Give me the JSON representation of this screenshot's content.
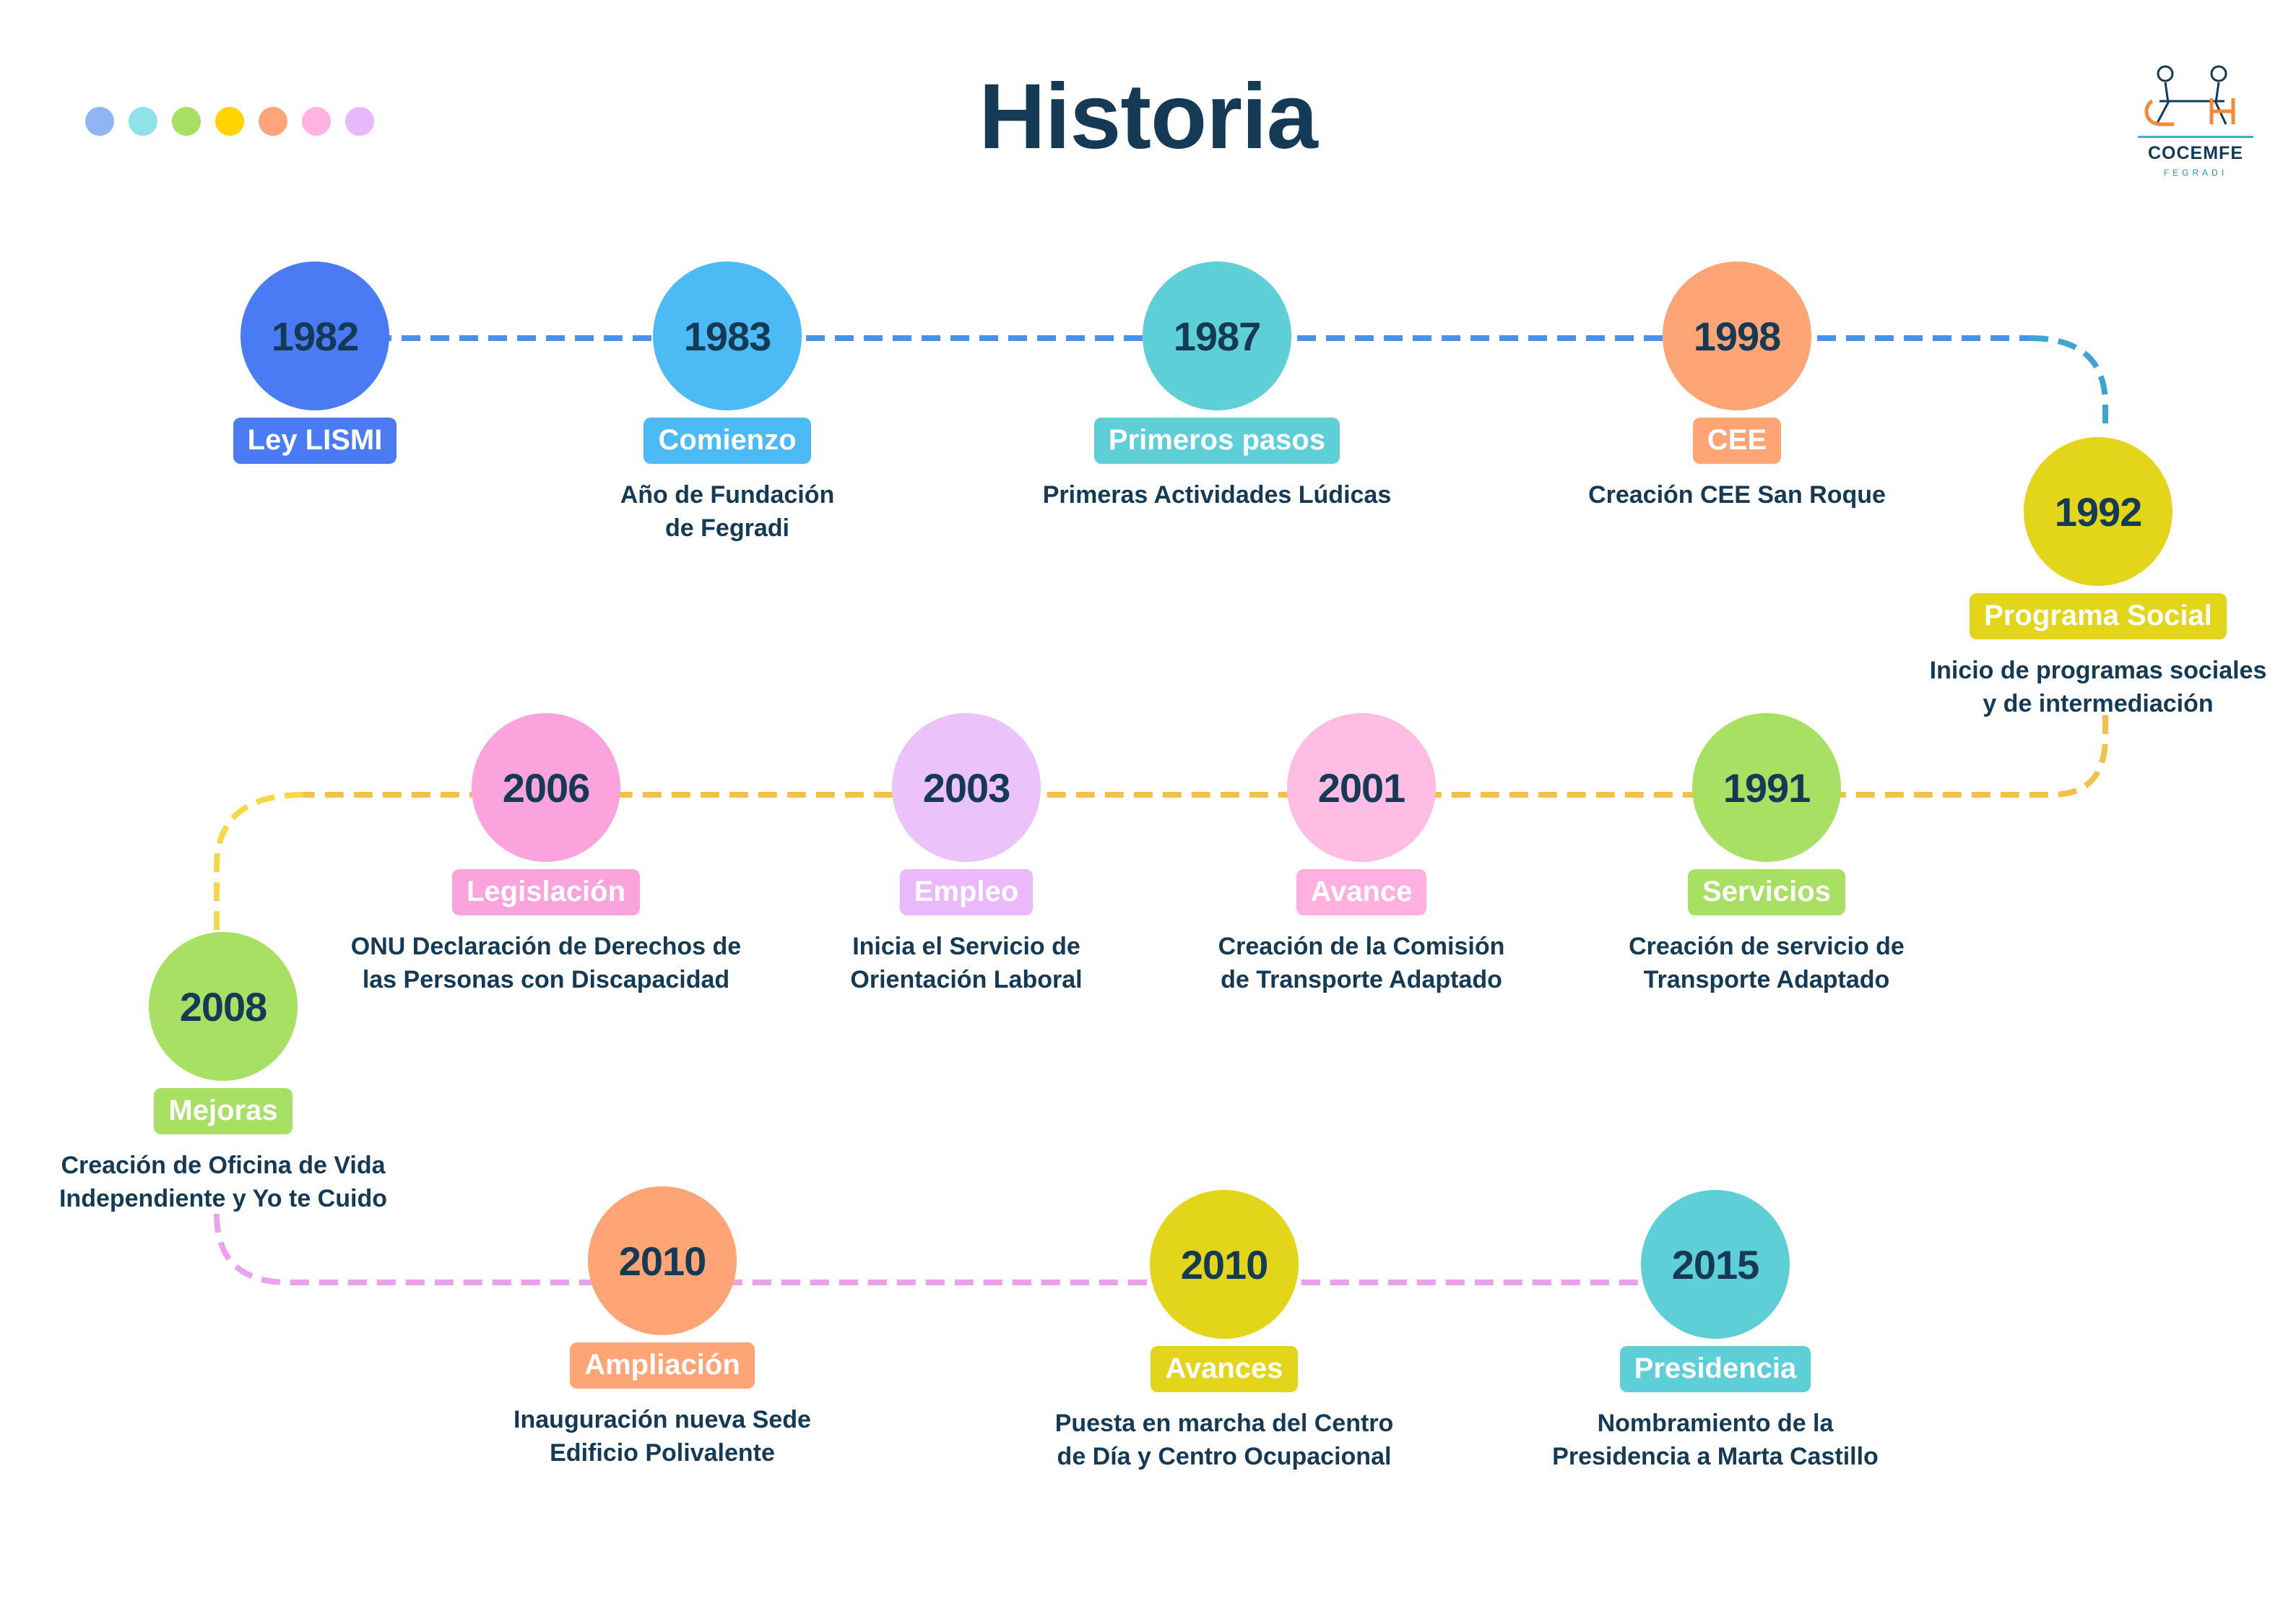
{
  "page": {
    "title": "Historia"
  },
  "palette_dots": [
    "#8fb5f5",
    "#8fe3e8",
    "#a8e063",
    "#ffd400",
    "#ffa57a",
    "#ffb3e0",
    "#e8b8ff"
  ],
  "logo": {
    "name": "COCEMFE",
    "sub": "FEGRADI",
    "icon": "people-at-table-icon"
  },
  "path_colors": {
    "row1": "#4d90e8",
    "connector1": "#3fa3d6",
    "row2": "#f5d84a",
    "connector2": "#f2c14a",
    "row3": "#e9a2ec",
    "connector3": "#e590d8"
  },
  "events": [
    {
      "year": "1982",
      "tag": "Ley LISMI",
      "lines": [],
      "circle": "#4a7bf5",
      "tagColor": "#4a7bf5"
    },
    {
      "year": "1983",
      "tag": "Comienzo",
      "lines": [
        "Año de Fundación",
        "de Fegradi"
      ],
      "circle": "#4bbaf5",
      "tagColor": "#4bbaf5"
    },
    {
      "year": "1987",
      "tag": "Primeros pasos",
      "lines": [
        "Primeras Actividades Lúdicas"
      ],
      "circle": "#5ecfd6",
      "tagColor": "#5ecfd6"
    },
    {
      "year": "1998",
      "tag": "CEE",
      "lines": [
        "Creación CEE San Roque"
      ],
      "circle": "#ffa575",
      "tagColor": "#ffa575"
    },
    {
      "year": "1992",
      "tag": "Programa Social",
      "lines": [
        "Inicio de programas sociales",
        "y de intermediación"
      ],
      "circle": "#e3d61a",
      "tagColor": "#e3d61a"
    },
    {
      "year": "1991",
      "tag": "Servicios",
      "lines": [
        "Creación de servicio de",
        "Transporte Adaptado"
      ],
      "circle": "#a8e063",
      "tagColor": "#a8e063"
    },
    {
      "year": "2001",
      "tag": "Avance",
      "lines": [
        "Creación de la Comisión",
        "de Transporte Adaptado"
      ],
      "circle": "#ffbde4",
      "tagColor": "#ffb0df"
    },
    {
      "year": "2003",
      "tag": "Empleo",
      "lines": [
        "Inicia el Servicio de",
        "Orientación Laboral"
      ],
      "circle": "#ecc2fb",
      "tagColor": "#eab8fb"
    },
    {
      "year": "2006",
      "tag": "Legislación",
      "lines": [
        "ONU Declaración de Derechos de",
        "las Personas con Discapacidad"
      ],
      "circle": "#fba3dd",
      "tagColor": "#fba3dd"
    },
    {
      "year": "2008",
      "tag": "Mejoras",
      "lines": [
        "Creación de Oficina de Vida",
        "Independiente y Yo te Cuido"
      ],
      "circle": "#a8e063",
      "tagColor": "#a8e063"
    },
    {
      "year": "2010",
      "tag": "Ampliación",
      "lines": [
        "Inauguración nueva Sede",
        "Edificio Polivalente"
      ],
      "circle": "#ffa575",
      "tagColor": "#ffa575"
    },
    {
      "year": "2010",
      "tag": "Avances",
      "lines": [
        "Puesta en marcha del Centro",
        "de Día y Centro Ocupacional"
      ],
      "circle": "#e3d61a",
      "tagColor": "#e3d61a"
    },
    {
      "year": "2015",
      "tag": "Presidencia",
      "lines": [
        "Nombramiento de la",
        "Presidencia a Marta Castillo"
      ],
      "circle": "#5ecfd6",
      "tagColor": "#5ecfd6"
    }
  ]
}
